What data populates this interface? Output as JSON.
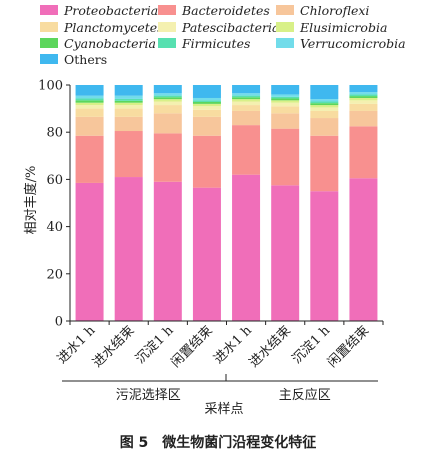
{
  "chart_data": {
    "type": "stacked-bar",
    "categories": [
      "进水1 h",
      "进水结束",
      "沉淀1 h",
      "闲置结束",
      "进水1 h",
      "进水结束",
      "沉淀1 h",
      "闲置结束"
    ],
    "groups": [
      {
        "label": "污泥选择区",
        "from": 0,
        "to": 3
      },
      {
        "label": "主反应区",
        "from": 4,
        "to": 7
      }
    ],
    "ylabel": "相对丰度/%",
    "xlabel": "采样点",
    "ylim": [
      0,
      100
    ],
    "yticks": [
      0,
      20,
      40,
      60,
      80,
      100
    ],
    "legend_position": "top",
    "series": [
      {
        "name": "Proteobacteria",
        "color": "#f06eb9",
        "values": [
          58.5,
          61,
          59,
          56.5,
          62,
          57.5,
          55,
          60.5
        ]
      },
      {
        "name": "Bacteroidetes",
        "color": "#f8908f",
        "values": [
          20,
          19.5,
          20.5,
          22,
          21,
          24,
          23.5,
          22
        ]
      },
      {
        "name": "Chloroflexi",
        "color": "#f7c69b",
        "values": [
          8,
          6,
          8.5,
          8,
          6,
          6.5,
          7.5,
          6.5
        ]
      },
      {
        "name": "Planctomycetes",
        "color": "#f8dca0",
        "values": [
          3.5,
          3.5,
          3.5,
          3,
          2.5,
          3,
          3,
          3
        ]
      },
      {
        "name": "Patescibacteria",
        "color": "#f4f0b0",
        "values": [
          1.5,
          1.5,
          1.5,
          1.5,
          1.5,
          1.5,
          1.5,
          1.5
        ]
      },
      {
        "name": "Elusimicrobia",
        "color": "#d8f088",
        "values": [
          1,
          1,
          1,
          1,
          1,
          1,
          1,
          1
        ]
      },
      {
        "name": "Cyanobacteria",
        "color": "#5cd65c",
        "values": [
          1,
          0.8,
          0.8,
          0.8,
          0.8,
          0.8,
          0.8,
          0.8
        ]
      },
      {
        "name": "Firmicutes",
        "color": "#57e0b0",
        "values": [
          0.8,
          0.8,
          0.7,
          0.7,
          0.7,
          0.7,
          0.7,
          0.7
        ]
      },
      {
        "name": "Verrucomicrobia",
        "color": "#72dcea",
        "values": [
          1.2,
          1.4,
          1.0,
          1.0,
          1.0,
          1.0,
          1.0,
          1.0
        ]
      },
      {
        "name": "Others",
        "color": "#3fb8ef",
        "values": [
          4.5,
          4.5,
          3.5,
          5.5,
          3.5,
          4,
          6,
          3
        ]
      }
    ]
  },
  "figure": {
    "caption": "图 5　微生物菌门沿程变化特征"
  }
}
